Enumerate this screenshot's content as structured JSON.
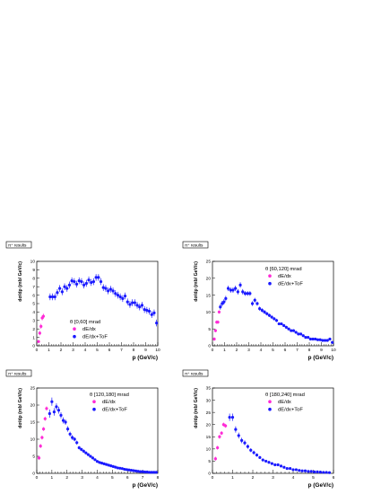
{
  "chart_data": [
    {
      "type": "scatter",
      "results_label": "π⁺ results",
      "xlabel": "p (GeV/c)",
      "ylabel": "dσ/dp (mb/ GeV/c)",
      "legend_title": "θ [0,60] mrad",
      "xlim": [
        0,
        10
      ],
      "ylim": [
        0,
        10
      ],
      "xticks": [
        0,
        1,
        2,
        3,
        4,
        5,
        6,
        7,
        8,
        9,
        10
      ],
      "yticks": [
        0,
        1,
        2,
        3,
        4,
        5,
        6,
        7,
        8,
        9,
        10
      ],
      "series": [
        {
          "name": "dE/dx",
          "color": "#ff2bd6",
          "x": [
            0.15,
            0.25,
            0.35,
            0.45,
            0.55
          ],
          "y": [
            0.5,
            1.5,
            2.3,
            3.3,
            3.5
          ],
          "yerr": [
            0.2,
            0.25,
            0.3,
            0.3,
            0.3
          ]
        },
        {
          "name": "dE/dx+ToF",
          "color": "#1a1aff",
          "x": [
            1.1,
            1.3,
            1.5,
            1.7,
            1.9,
            2.1,
            2.3,
            2.5,
            2.7,
            2.9,
            3.1,
            3.3,
            3.5,
            3.7,
            3.9,
            4.1,
            4.3,
            4.5,
            4.7,
            4.9,
            5.1,
            5.3,
            5.5,
            5.7,
            5.9,
            6.1,
            6.3,
            6.5,
            6.7,
            6.9,
            7.1,
            7.3,
            7.5,
            7.7,
            7.9,
            8.1,
            8.3,
            8.5,
            8.7,
            8.9,
            9.1,
            9.3,
            9.5,
            9.7,
            9.9
          ],
          "y": [
            5.8,
            5.8,
            5.8,
            6.3,
            6.8,
            6.4,
            7.0,
            6.8,
            7.2,
            7.7,
            7.6,
            7.3,
            7.7,
            7.6,
            7.2,
            7.4,
            7.8,
            7.5,
            7.6,
            8.1,
            8.1,
            7.6,
            6.9,
            6.8,
            6.5,
            6.7,
            6.5,
            6.2,
            6.0,
            5.8,
            5.6,
            5.9,
            5.2,
            4.9,
            5.1,
            5.1,
            4.8,
            4.6,
            4.8,
            4.3,
            4.2,
            4.1,
            3.7,
            3.9,
            2.7
          ],
          "yerr": [
            0.4,
            0.4,
            0.4,
            0.4,
            0.4,
            0.4,
            0.4,
            0.4,
            0.4,
            0.4,
            0.4,
            0.4,
            0.4,
            0.4,
            0.4,
            0.4,
            0.4,
            0.4,
            0.4,
            0.4,
            0.4,
            0.4,
            0.4,
            0.4,
            0.4,
            0.4,
            0.4,
            0.4,
            0.4,
            0.4,
            0.4,
            0.4,
            0.4,
            0.4,
            0.4,
            0.4,
            0.4,
            0.4,
            0.4,
            0.4,
            0.4,
            0.4,
            0.4,
            0.4,
            0.4
          ]
        }
      ]
    },
    {
      "type": "scatter",
      "results_label": "π⁺ results",
      "xlabel": "p (GeV/c)",
      "ylabel": "dσ/dp (mb/ GeV/c)",
      "legend_title": "θ [60,120] mrad",
      "xlim": [
        0,
        10
      ],
      "ylim": [
        0,
        25
      ],
      "xticks": [
        0,
        1,
        2,
        3,
        4,
        5,
        6,
        7,
        8,
        9,
        10
      ],
      "yticks": [
        0,
        5,
        10,
        15,
        20,
        25
      ],
      "series": [
        {
          "name": "dE/dx",
          "color": "#ff2bd6",
          "x": [
            0.15,
            0.25,
            0.35,
            0.45,
            0.55
          ],
          "y": [
            2.0,
            4.5,
            7.0,
            7.0,
            10.0
          ],
          "yerr": [
            0.5,
            0.5,
            0.5,
            0.5,
            0.5
          ]
        },
        {
          "name": "dE/dx+ToF",
          "color": "#1a1aff",
          "x": [
            0.65,
            0.8,
            0.95,
            1.1,
            1.3,
            1.5,
            1.7,
            1.9,
            2.1,
            2.3,
            2.5,
            2.7,
            2.9,
            3.1,
            3.3,
            3.5,
            3.7,
            3.9,
            4.1,
            4.3,
            4.5,
            4.7,
            4.9,
            5.1,
            5.3,
            5.5,
            5.7,
            5.9,
            6.1,
            6.3,
            6.5,
            6.7,
            6.9,
            7.1,
            7.3,
            7.5,
            7.7,
            7.9,
            8.1,
            8.3,
            8.5,
            8.7,
            8.9,
            9.1,
            9.3,
            9.5,
            9.7,
            9.9
          ],
          "y": [
            11.5,
            12.5,
            13.0,
            14.0,
            17.0,
            16.5,
            16.5,
            17.0,
            16.0,
            18.0,
            16.0,
            15.5,
            15.5,
            15.5,
            12.5,
            13.5,
            12.5,
            11.0,
            10.5,
            10.0,
            9.5,
            9.0,
            8.5,
            8.0,
            7.5,
            6.5,
            6.5,
            6.0,
            5.5,
            5.0,
            4.5,
            4.5,
            4.0,
            3.5,
            3.5,
            3.0,
            2.5,
            2.5,
            2.0,
            2.0,
            2.0,
            1.8,
            1.8,
            1.6,
            1.6,
            1.6,
            2.0,
            1.0
          ],
          "yerr": [
            0.8,
            0.8,
            0.8,
            0.8,
            0.8,
            0.8,
            0.8,
            0.8,
            0.8,
            0.8,
            0.8,
            0.7,
            0.7,
            0.7,
            0.7,
            0.7,
            0.6,
            0.6,
            0.6,
            0.6,
            0.5,
            0.5,
            0.5,
            0.5,
            0.5,
            0.4,
            0.4,
            0.4,
            0.4,
            0.4,
            0.4,
            0.4,
            0.3,
            0.3,
            0.3,
            0.3,
            0.3,
            0.3,
            0.3,
            0.3,
            0.3,
            0.3,
            0.3,
            0.3,
            0.3,
            0.3,
            0.3,
            0.3
          ]
        }
      ]
    },
    {
      "type": "scatter",
      "results_label": "π⁺ results",
      "xlabel": "p (GeV/c)",
      "ylabel": "dσ/dp (mb/ GeV/c)",
      "legend_title": "θ [120,180] mrad",
      "xlim": [
        0,
        8
      ],
      "ylim": [
        0,
        25
      ],
      "xticks": [
        0,
        1,
        2,
        3,
        4,
        5,
        6,
        7,
        8
      ],
      "yticks": [
        0,
        5,
        10,
        15,
        20,
        25
      ],
      "series": [
        {
          "name": "dE/dx",
          "color": "#ff2bd6",
          "x": [
            0.15,
            0.25,
            0.35,
            0.45,
            0.55,
            0.65
          ],
          "y": [
            4.5,
            8.0,
            10.5,
            13.0,
            16.0,
            19.0
          ],
          "yerr": [
            0.6,
            0.6,
            0.6,
            0.6,
            0.6,
            0.6
          ]
        },
        {
          "name": "dE/dx+ToF",
          "color": "#1a1aff",
          "x": [
            0.85,
            1.0,
            1.15,
            1.3,
            1.45,
            1.6,
            1.75,
            1.9,
            2.05,
            2.2,
            2.35,
            2.5,
            2.65,
            2.8,
            2.95,
            3.1,
            3.25,
            3.4,
            3.55,
            3.7,
            3.85,
            4.0,
            4.15,
            4.3,
            4.45,
            4.6,
            4.75,
            4.9,
            5.05,
            5.2,
            5.35,
            5.5,
            5.65,
            5.8,
            5.95,
            6.1,
            6.25,
            6.4,
            6.55,
            6.7,
            6.85,
            7.0,
            7.15,
            7.3,
            7.45,
            7.6,
            7.75,
            7.9
          ],
          "y": [
            17.5,
            21.0,
            18.0,
            19.5,
            18.5,
            17.0,
            15.5,
            15.0,
            13.0,
            11.5,
            10.5,
            10.0,
            9.0,
            7.5,
            7.0,
            6.5,
            6.0,
            5.5,
            5.0,
            4.5,
            4.0,
            3.5,
            3.2,
            3.0,
            2.8,
            2.6,
            2.4,
            2.2,
            2.0,
            1.8,
            1.6,
            1.5,
            1.4,
            1.2,
            1.1,
            1.0,
            0.9,
            0.8,
            0.7,
            0.6,
            0.5,
            0.5,
            0.4,
            0.4,
            0.3,
            0.3,
            0.3,
            0.3
          ],
          "yerr": [
            1.2,
            1.2,
            1.1,
            1.0,
            1.0,
            0.9,
            0.9,
            0.8,
            0.8,
            0.7,
            0.7,
            0.6,
            0.6,
            0.5,
            0.5,
            0.5,
            0.4,
            0.4,
            0.4,
            0.4,
            0.3,
            0.3,
            0.3,
            0.3,
            0.3,
            0.3,
            0.2,
            0.2,
            0.2,
            0.2,
            0.2,
            0.2,
            0.2,
            0.2,
            0.2,
            0.2,
            0.2,
            0.2,
            0.2,
            0.2,
            0.2,
            0.2,
            0.2,
            0.2,
            0.2,
            0.2,
            0.2,
            0.2
          ]
        }
      ]
    },
    {
      "type": "scatter",
      "results_label": "π⁺ results",
      "xlabel": "p (GeV/c)",
      "ylabel": "dσ/dp (mb/ GeV/c)",
      "legend_title": "θ [180,240] mrad",
      "xlim": [
        0,
        6
      ],
      "ylim": [
        0,
        35
      ],
      "xticks": [
        0,
        1,
        2,
        3,
        4,
        5,
        6
      ],
      "yticks": [
        0,
        5,
        10,
        15,
        20,
        25,
        30,
        35
      ],
      "series": [
        {
          "name": "dE/dx",
          "color": "#ff2bd6",
          "x": [
            0.15,
            0.25,
            0.35,
            0.45,
            0.55,
            0.65
          ],
          "y": [
            6.0,
            10.5,
            15.0,
            16.5,
            20.0,
            19.5
          ],
          "yerr": [
            0.8,
            0.8,
            0.8,
            0.8,
            0.8,
            0.8
          ]
        },
        {
          "name": "dE/dx+ToF",
          "color": "#1a1aff",
          "x": [
            0.85,
            1.0,
            1.15,
            1.3,
            1.45,
            1.6,
            1.75,
            1.9,
            2.05,
            2.2,
            2.35,
            2.5,
            2.65,
            2.8,
            2.95,
            3.1,
            3.25,
            3.4,
            3.55,
            3.7,
            3.85,
            4.0,
            4.15,
            4.3,
            4.45,
            4.6,
            4.75,
            4.9,
            5.05,
            5.2,
            5.35,
            5.5,
            5.65,
            5.8
          ],
          "y": [
            23.0,
            23.0,
            18.0,
            15.5,
            13.5,
            12.5,
            11.0,
            9.5,
            8.5,
            7.5,
            6.5,
            5.5,
            5.0,
            4.5,
            4.0,
            3.5,
            3.5,
            3.0,
            2.5,
            2.0,
            2.0,
            1.5,
            1.5,
            1.2,
            1.0,
            1.0,
            0.8,
            0.8,
            0.6,
            0.6,
            0.5,
            0.4,
            0.4,
            0.3
          ],
          "yerr": [
            1.5,
            1.5,
            1.3,
            1.2,
            1.1,
            1.0,
            0.9,
            0.8,
            0.8,
            0.7,
            0.6,
            0.6,
            0.5,
            0.5,
            0.5,
            0.4,
            0.4,
            0.4,
            0.4,
            0.3,
            0.3,
            0.3,
            0.3,
            0.3,
            0.3,
            0.3,
            0.3,
            0.3,
            0.3,
            0.3,
            0.3,
            0.3,
            0.3,
            0.3
          ]
        }
      ]
    }
  ]
}
